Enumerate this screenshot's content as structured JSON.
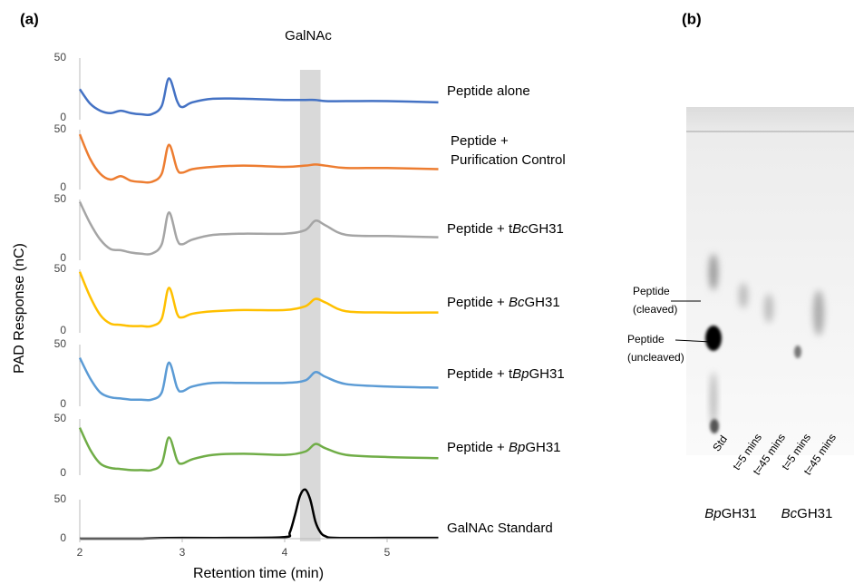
{
  "figure": {
    "title": "(a)",
    "y_label": "PAD Response (nC)",
    "x_label": "Retention time (min)",
    "annotation": "GalNAc",
    "xlim": [
      2,
      5.5
    ],
    "xticks": [
      2,
      3,
      4,
      5
    ],
    "highlight_x": [
      4.15,
      4.35
    ]
  },
  "chart_data": [
    {
      "type": "line",
      "label": [
        [
          {
            "text": "Peptide alone"
          }
        ]
      ],
      "color": "#4472c4",
      "ylim": [
        0,
        50
      ],
      "yticks": [
        0,
        50
      ],
      "x": [
        2.0,
        2.1,
        2.2,
        2.3,
        2.4,
        2.5,
        2.6,
        2.7,
        2.8,
        2.87,
        2.95,
        3.0,
        3.1,
        3.3,
        3.6,
        4.0,
        4.2,
        4.3,
        4.4,
        4.6,
        5.0,
        5.5
      ],
      "values": [
        24,
        12,
        6,
        4,
        6,
        4,
        3,
        3,
        10,
        33,
        14,
        9,
        13,
        16,
        16,
        15,
        15,
        15,
        14,
        14,
        14,
        13
      ]
    },
    {
      "type": "line",
      "label": [
        [
          {
            "text": "Peptide +"
          }
        ],
        [
          {
            "text": "Purification Control"
          }
        ]
      ],
      "color": "#ed7d31",
      "ylim": [
        0,
        50
      ],
      "yticks": [
        0,
        50
      ],
      "x": [
        2.0,
        2.1,
        2.2,
        2.3,
        2.4,
        2.5,
        2.6,
        2.7,
        2.8,
        2.87,
        2.95,
        3.0,
        3.1,
        3.3,
        3.6,
        4.0,
        4.2,
        4.3,
        4.4,
        4.6,
        5.0,
        5.5
      ],
      "values": [
        46,
        25,
        12,
        7,
        10,
        6,
        5,
        5,
        12,
        37,
        16,
        13,
        16,
        18,
        19,
        18,
        19,
        20,
        19,
        17,
        17,
        16
      ]
    },
    {
      "type": "line",
      "label": [
        [
          {
            "text": "Peptide + t"
          },
          {
            "text": "Bc",
            "italic": true
          },
          {
            "text": "GH31"
          }
        ]
      ],
      "color": "#a5a5a5",
      "ylim": [
        0,
        50
      ],
      "yticks": [
        0,
        50
      ],
      "x": [
        2.0,
        2.1,
        2.2,
        2.3,
        2.4,
        2.5,
        2.6,
        2.7,
        2.8,
        2.87,
        2.95,
        3.0,
        3.1,
        3.3,
        3.6,
        4.0,
        4.2,
        4.3,
        4.4,
        4.6,
        5.0,
        5.5
      ],
      "values": [
        48,
        30,
        16,
        8,
        7,
        5,
        4,
        4,
        12,
        39,
        16,
        12,
        16,
        20,
        21,
        21,
        24,
        32,
        28,
        20,
        19,
        18
      ]
    },
    {
      "type": "line",
      "label": [
        [
          {
            "text": "Peptide + "
          },
          {
            "text": "Bc",
            "italic": true
          },
          {
            "text": "GH31"
          }
        ]
      ],
      "color": "#ffc000",
      "ylim": [
        0,
        50
      ],
      "yticks": [
        0,
        50
      ],
      "x": [
        2.0,
        2.1,
        2.2,
        2.3,
        2.4,
        2.5,
        2.6,
        2.7,
        2.8,
        2.87,
        2.95,
        3.0,
        3.1,
        3.3,
        3.6,
        4.0,
        4.2,
        4.3,
        4.4,
        4.6,
        5.0,
        5.5
      ],
      "values": [
        48,
        28,
        13,
        6,
        5,
        4,
        4,
        4,
        10,
        35,
        14,
        11,
        14,
        16,
        17,
        17,
        20,
        26,
        23,
        16,
        15,
        15
      ]
    },
    {
      "type": "line",
      "label": [
        [
          {
            "text": "Peptide + t"
          },
          {
            "text": "Bp",
            "italic": true
          },
          {
            "text": "GH31"
          }
        ]
      ],
      "color": "#5b9bd5",
      "ylim": [
        0,
        50
      ],
      "yticks": [
        0,
        50
      ],
      "x": [
        2.0,
        2.1,
        2.2,
        2.3,
        2.4,
        2.5,
        2.6,
        2.7,
        2.8,
        2.87,
        2.95,
        3.0,
        3.1,
        3.3,
        3.6,
        4.0,
        4.2,
        4.3,
        4.4,
        4.6,
        5.0,
        5.5
      ],
      "values": [
        39,
        22,
        10,
        6,
        5,
        4,
        4,
        4,
        10,
        35,
        14,
        11,
        15,
        18,
        18,
        18,
        20,
        27,
        23,
        17,
        15,
        14
      ]
    },
    {
      "type": "line",
      "label": [
        [
          {
            "text": "Peptide + "
          },
          {
            "text": "Bp",
            "italic": true
          },
          {
            "text": "GH31"
          }
        ]
      ],
      "color": "#70ad47",
      "ylim": [
        0,
        50
      ],
      "yticks": [
        0,
        50
      ],
      "x": [
        2.0,
        2.1,
        2.2,
        2.3,
        2.4,
        2.5,
        2.6,
        2.7,
        2.8,
        2.87,
        2.95,
        3.0,
        3.1,
        3.3,
        3.6,
        4.0,
        4.2,
        4.3,
        4.4,
        4.6,
        5.0,
        5.5
      ],
      "values": [
        42,
        22,
        9,
        5,
        4,
        3,
        3,
        3,
        9,
        33,
        12,
        9,
        13,
        17,
        18,
        17,
        20,
        27,
        23,
        17,
        15,
        14
      ]
    },
    {
      "type": "line",
      "label": [
        [
          {
            "text": "GalNAc Standard"
          }
        ]
      ],
      "color": "#000000",
      "ylim": [
        0,
        50
      ],
      "yticks": [
        0,
        50
      ],
      "x": [
        2.0,
        2.5,
        2.6,
        2.7,
        3.0,
        3.5,
        4.0,
        4.05,
        4.1,
        4.15,
        4.2,
        4.25,
        4.3,
        4.35,
        4.4,
        4.5,
        5.0,
        5.5
      ],
      "values": [
        0,
        0,
        0,
        0.5,
        1,
        1,
        2,
        8,
        30,
        55,
        63,
        50,
        22,
        8,
        3,
        1,
        1,
        1
      ]
    }
  ],
  "panel_b": {
    "title": "(b)",
    "annotations": [
      [
        "Peptide",
        "(cleaved)"
      ],
      [
        "Peptide",
        "(uncleaved)"
      ]
    ],
    "lanes": [
      "Std",
      "t=5 mins",
      "t=45 mins",
      "t=5 mins",
      "t=45 mins"
    ],
    "groups": [
      [
        {
          "text": "Bp",
          "italic": true
        },
        {
          "text": "GH31"
        }
      ],
      [
        {
          "text": "Bc",
          "italic": true
        },
        {
          "text": "GH31"
        }
      ]
    ]
  }
}
